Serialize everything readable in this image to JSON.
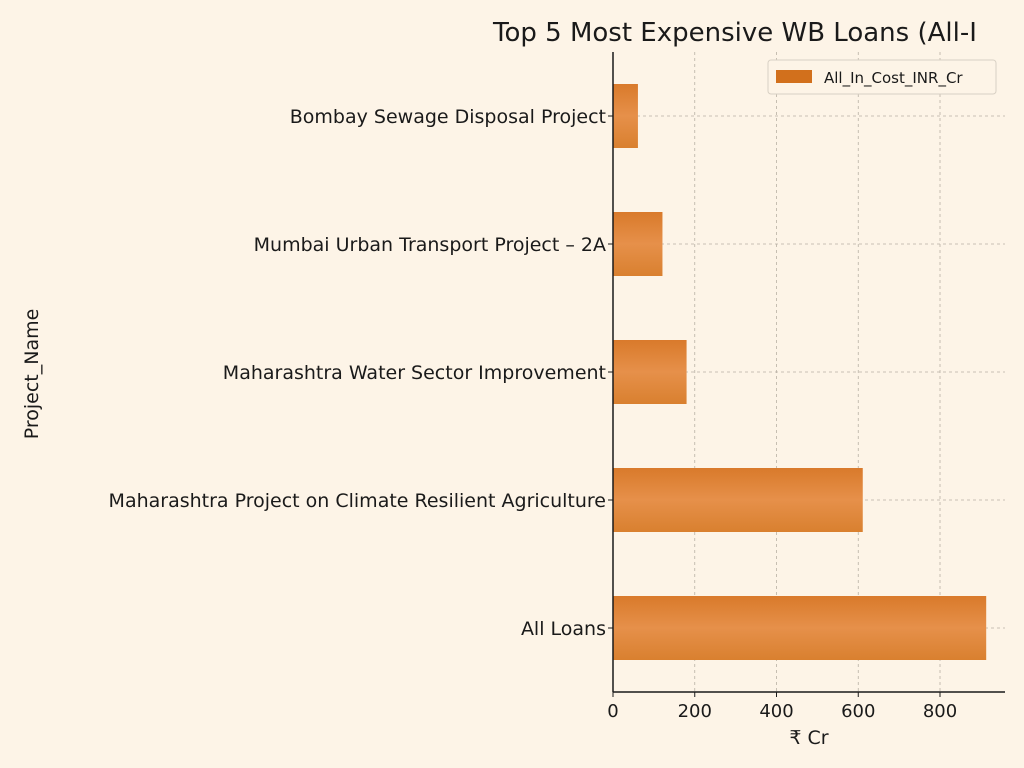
{
  "chart_data": {
    "type": "bar",
    "orientation": "horizontal",
    "title": "Top 5 Most Expensive WB Loans (All-I",
    "xlabel": "₹ Cr",
    "ylabel": "Project_Name",
    "categories": [
      "Bombay Sewage Disposal Project",
      "Mumbai Urban Transport Project – 2A",
      "Maharashtra Water Sector Improvement",
      "Maharashtra Project on Climate Resilient Agriculture",
      "All Loans"
    ],
    "series": [
      {
        "name": "All_In_Cost_INR_Cr",
        "values": [
          61,
          121,
          180,
          611,
          913
        ]
      }
    ],
    "xlim": [
      0,
      959
    ],
    "xticks": [
      0,
      200,
      400,
      600,
      800
    ],
    "grid": true,
    "legend": "top-right",
    "colors": {
      "bar": "#d97a2b",
      "bar_light": "#e6904a",
      "background": "#fdf4e7",
      "grid": "#b8b0a4"
    }
  }
}
